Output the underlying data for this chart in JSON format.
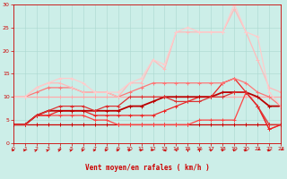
{
  "xlabel": "Vent moyen/en rafales ( km/h )",
  "xlim": [
    0,
    23
  ],
  "ylim": [
    0,
    30
  ],
  "xticks": [
    0,
    1,
    2,
    3,
    4,
    5,
    6,
    7,
    8,
    9,
    10,
    11,
    12,
    13,
    14,
    15,
    16,
    17,
    18,
    19,
    20,
    21,
    22,
    23
  ],
  "yticks": [
    0,
    5,
    10,
    15,
    20,
    25,
    30
  ],
  "bg_color": "#cceee8",
  "grid_color": "#aad8d0",
  "lines": [
    {
      "x": [
        0,
        1,
        2,
        3,
        4,
        5,
        6,
        7,
        8,
        9,
        10,
        11,
        12,
        13,
        14,
        15,
        16,
        17,
        18,
        19,
        20,
        21,
        22,
        23
      ],
      "y": [
        4,
        4,
        4,
        4,
        4,
        4,
        4,
        4,
        4,
        4,
        4,
        4,
        4,
        4,
        4,
        4,
        4,
        4,
        4,
        4,
        4,
        4,
        4,
        4
      ],
      "color": "#cc0000",
      "lw": 0.9,
      "marker": "+"
    },
    {
      "x": [
        0,
        1,
        2,
        3,
        4,
        5,
        6,
        7,
        8,
        9,
        10,
        11,
        12,
        13,
        14,
        15,
        16,
        17,
        18,
        19,
        20,
        21,
        22,
        23
      ],
      "y": [
        10,
        10,
        10,
        10,
        10,
        10,
        10,
        10,
        10,
        10,
        10,
        10,
        10,
        10,
        10,
        10,
        10,
        10,
        10,
        10,
        10,
        10,
        10,
        10
      ],
      "color": "#ffaaaa",
      "lw": 0.9,
      "marker": "+"
    },
    {
      "x": [
        0,
        1,
        2,
        3,
        4,
        5,
        6,
        7,
        8,
        9,
        10,
        11,
        12,
        13,
        14,
        15,
        16,
        17,
        18,
        19,
        20,
        21,
        22,
        23
      ],
      "y": [
        4,
        4,
        6,
        6,
        6,
        6,
        6,
        5,
        5,
        4,
        4,
        4,
        4,
        4,
        4,
        4,
        5,
        5,
        5,
        5,
        11,
        8,
        3,
        4
      ],
      "color": "#ff4444",
      "lw": 0.9,
      "marker": "+"
    },
    {
      "x": [
        0,
        1,
        2,
        3,
        4,
        5,
        6,
        7,
        8,
        9,
        10,
        11,
        12,
        13,
        14,
        15,
        16,
        17,
        18,
        19,
        20,
        21,
        22,
        23
      ],
      "y": [
        4,
        4,
        6,
        6,
        7,
        7,
        7,
        6,
        6,
        6,
        6,
        6,
        6,
        7,
        8,
        9,
        10,
        10,
        13,
        14,
        11,
        8,
        3,
        4
      ],
      "color": "#ee2222",
      "lw": 0.9,
      "marker": "+"
    },
    {
      "x": [
        0,
        1,
        2,
        3,
        4,
        5,
        6,
        7,
        8,
        9,
        10,
        11,
        12,
        13,
        14,
        15,
        16,
        17,
        18,
        19,
        20,
        21,
        22,
        23
      ],
      "y": [
        4,
        4,
        6,
        7,
        7,
        7,
        7,
        7,
        7,
        7,
        8,
        8,
        9,
        10,
        10,
        10,
        10,
        10,
        11,
        11,
        11,
        10,
        8,
        8
      ],
      "color": "#bb0000",
      "lw": 1.3,
      "marker": "+"
    },
    {
      "x": [
        0,
        1,
        2,
        3,
        4,
        5,
        6,
        7,
        8,
        9,
        10,
        11,
        12,
        13,
        14,
        15,
        16,
        17,
        18,
        19,
        20,
        21,
        22,
        23
      ],
      "y": [
        4,
        4,
        6,
        7,
        8,
        8,
        8,
        7,
        8,
        8,
        10,
        10,
        10,
        10,
        9,
        9,
        9,
        10,
        10,
        11,
        11,
        8,
        4,
        4
      ],
      "color": "#dd3333",
      "lw": 0.9,
      "marker": "+"
    },
    {
      "x": [
        0,
        1,
        2,
        3,
        4,
        5,
        6,
        7,
        8,
        9,
        10,
        11,
        12,
        13,
        14,
        15,
        16,
        17,
        18,
        19,
        20,
        21,
        22,
        23
      ],
      "y": [
        10,
        10,
        11,
        12,
        12,
        12,
        11,
        11,
        11,
        10,
        11,
        12,
        13,
        13,
        13,
        13,
        13,
        13,
        13,
        14,
        13,
        11,
        10,
        8
      ],
      "color": "#ff7777",
      "lw": 0.9,
      "marker": "+"
    },
    {
      "x": [
        0,
        1,
        2,
        3,
        4,
        5,
        6,
        7,
        8,
        9,
        10,
        11,
        12,
        13,
        14,
        15,
        16,
        17,
        18,
        19,
        20,
        21,
        22,
        23
      ],
      "y": [
        10,
        10,
        12,
        13,
        13,
        12,
        11,
        11,
        11,
        10,
        13,
        13,
        18,
        16,
        24,
        24,
        24,
        24,
        24,
        29,
        24,
        18,
        12,
        11
      ],
      "color": "#ffbbbb",
      "lw": 0.9,
      "marker": "+"
    },
    {
      "x": [
        0,
        1,
        2,
        3,
        4,
        5,
        6,
        7,
        8,
        9,
        10,
        11,
        12,
        13,
        14,
        15,
        16,
        17,
        18,
        19,
        20,
        21,
        22,
        23
      ],
      "y": [
        10,
        10,
        12,
        13,
        14,
        14,
        13,
        11,
        11,
        11,
        13,
        14,
        18,
        17,
        24,
        25,
        24,
        24,
        24,
        30,
        24,
        23,
        11,
        8
      ],
      "color": "#ffcccc",
      "lw": 0.9,
      "marker": "+"
    }
  ],
  "arrow_angles_deg": [
    0,
    10,
    40,
    35,
    30,
    30,
    25,
    10,
    5,
    5,
    10,
    5,
    -30,
    -60,
    -80,
    -90,
    -90,
    -100,
    -100,
    -110,
    -120,
    -130,
    -120,
    -130
  ]
}
